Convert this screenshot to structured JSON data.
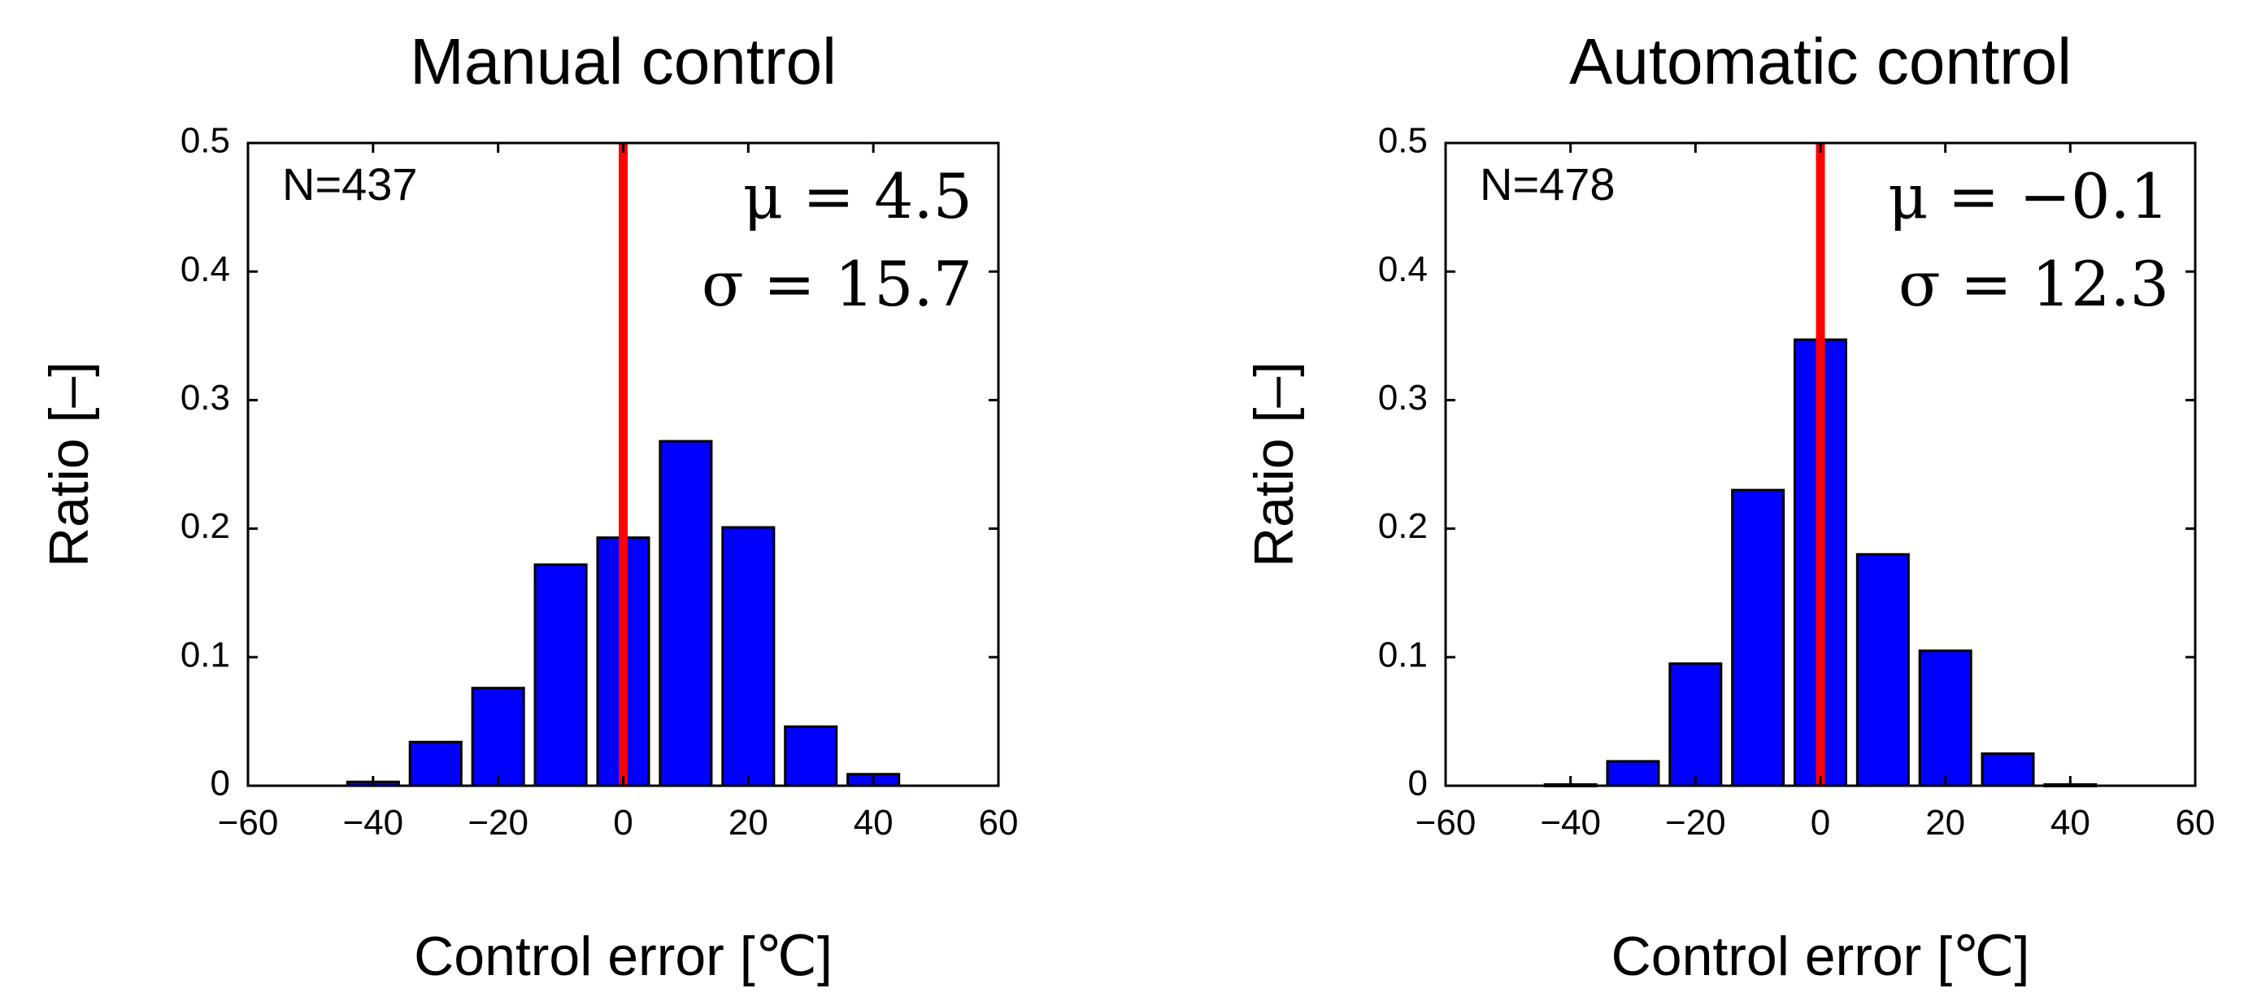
{
  "chart_data": [
    {
      "type": "bar",
      "title": "Manual control",
      "xlabel": "Control error [℃]",
      "ylabel": "Ratio [–]",
      "xlim": [
        -60,
        60
      ],
      "ylim": [
        0,
        0.5
      ],
      "xticks": [
        -60,
        -40,
        -20,
        0,
        20,
        40,
        60
      ],
      "xtick_labels": [
        "−60",
        "−40",
        "−20",
        "0",
        "20",
        "40",
        "60"
      ],
      "yticks": [
        0,
        0.1,
        0.2,
        0.3,
        0.4,
        0.5
      ],
      "ytick_labels": [
        "0",
        "0.1",
        "0.2",
        "0.3",
        "0.4",
        "0.5"
      ],
      "bin_width": 10,
      "x": [
        -50,
        -40,
        -30,
        -20,
        -10,
        0,
        10,
        20,
        30,
        40,
        50
      ],
      "values": [
        0.0,
        0.003,
        0.034,
        0.076,
        0.172,
        0.193,
        0.268,
        0.201,
        0.046,
        0.009,
        0.0
      ],
      "bar_color": "#0000ff",
      "reference_line": {
        "x": 0,
        "color": "#ff0000"
      },
      "annotations": {
        "n": "N=437",
        "mu": "μ = 4.5",
        "sigma": "σ = 15.7"
      },
      "grid": false
    },
    {
      "type": "bar",
      "title": "Automatic control",
      "xlabel": "Control error [℃]",
      "ylabel": "Ratio [–]",
      "xlim": [
        -60,
        60
      ],
      "ylim": [
        0,
        0.5
      ],
      "xticks": [
        -60,
        -40,
        -20,
        0,
        20,
        40,
        60
      ],
      "xtick_labels": [
        "−60",
        "−40",
        "−20",
        "0",
        "20",
        "40",
        "60"
      ],
      "yticks": [
        0,
        0.1,
        0.2,
        0.3,
        0.4,
        0.5
      ],
      "ytick_labels": [
        "0",
        "0.1",
        "0.2",
        "0.3",
        "0.4",
        "0.5"
      ],
      "bin_width": 10,
      "x": [
        -50,
        -40,
        -30,
        -20,
        -10,
        0,
        10,
        20,
        30,
        40,
        50
      ],
      "values": [
        0.0,
        0.001,
        0.019,
        0.095,
        0.23,
        0.347,
        0.18,
        0.105,
        0.025,
        0.001,
        0.0
      ],
      "bar_color": "#0000ff",
      "reference_line": {
        "x": 0,
        "color": "#ff0000"
      },
      "annotations": {
        "n": "N=478",
        "mu": "μ = −0.1",
        "sigma": "σ = 12.3"
      },
      "grid": false
    }
  ]
}
